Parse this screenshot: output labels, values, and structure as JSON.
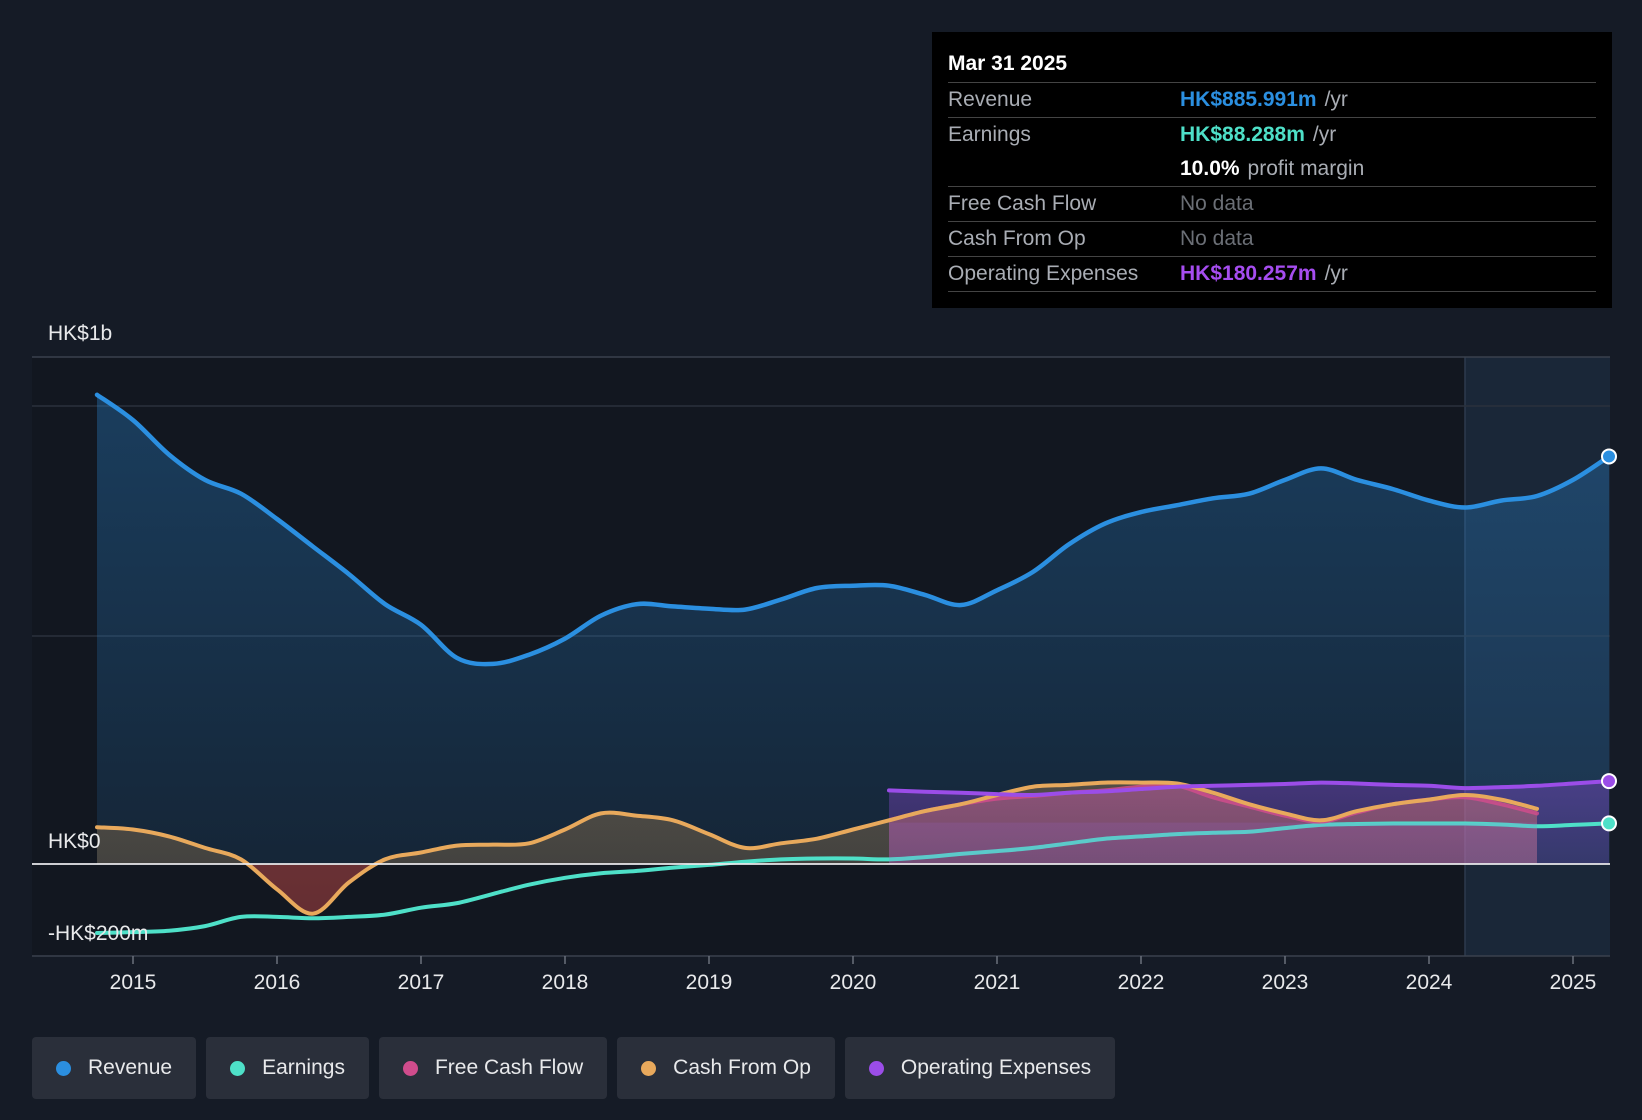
{
  "chart_data": {
    "type": "area",
    "title": "",
    "y_axis_labels": {
      "top": "HK$1b",
      "zero": "HK$0",
      "bottom": "-HK$200m"
    },
    "ylim": [
      -200,
      1100
    ],
    "x_ticks": [
      "2015",
      "2016",
      "2017",
      "2018",
      "2019",
      "2020",
      "2021",
      "2022",
      "2023",
      "2024",
      "2025"
    ],
    "highlight_from": 2024.25,
    "series": [
      {
        "name": "Revenue",
        "color": "#2b8fe0",
        "unit": "HK$m",
        "points": [
          [
            2014.75,
            1020
          ],
          [
            2015.0,
            965
          ],
          [
            2015.25,
            890
          ],
          [
            2015.5,
            835
          ],
          [
            2015.75,
            805
          ],
          [
            2016.0,
            750
          ],
          [
            2016.25,
            690
          ],
          [
            2016.5,
            630
          ],
          [
            2016.75,
            565
          ],
          [
            2017.0,
            520
          ],
          [
            2017.25,
            448
          ],
          [
            2017.5,
            435
          ],
          [
            2017.75,
            455
          ],
          [
            2018.0,
            490
          ],
          [
            2018.25,
            540
          ],
          [
            2018.5,
            565
          ],
          [
            2018.75,
            560
          ],
          [
            2019.0,
            555
          ],
          [
            2019.25,
            553
          ],
          [
            2019.5,
            575
          ],
          [
            2019.75,
            600
          ],
          [
            2020.0,
            605
          ],
          [
            2020.25,
            605
          ],
          [
            2020.5,
            585
          ],
          [
            2020.75,
            563
          ],
          [
            2021.0,
            595
          ],
          [
            2021.25,
            635
          ],
          [
            2021.5,
            695
          ],
          [
            2021.75,
            740
          ],
          [
            2022.0,
            765
          ],
          [
            2022.25,
            780
          ],
          [
            2022.5,
            795
          ],
          [
            2022.75,
            805
          ],
          [
            2023.0,
            835
          ],
          [
            2023.25,
            860
          ],
          [
            2023.5,
            835
          ],
          [
            2023.75,
            815
          ],
          [
            2024.0,
            790
          ],
          [
            2024.25,
            775
          ],
          [
            2024.5,
            790
          ],
          [
            2024.75,
            800
          ],
          [
            2025.0,
            835
          ],
          [
            2025.25,
            886
          ]
        ]
      },
      {
        "name": "Earnings",
        "color": "#4ee0c8",
        "unit": "HK$m",
        "points": [
          [
            2014.75,
            -150
          ],
          [
            2015.0,
            -148
          ],
          [
            2015.25,
            -145
          ],
          [
            2015.5,
            -135
          ],
          [
            2015.75,
            -115
          ],
          [
            2016.0,
            -115
          ],
          [
            2016.25,
            -118
          ],
          [
            2016.5,
            -115
          ],
          [
            2016.75,
            -110
          ],
          [
            2017.0,
            -95
          ],
          [
            2017.25,
            -85
          ],
          [
            2017.5,
            -65
          ],
          [
            2017.75,
            -45
          ],
          [
            2018.0,
            -30
          ],
          [
            2018.25,
            -20
          ],
          [
            2018.5,
            -15
          ],
          [
            2018.75,
            -8
          ],
          [
            2019.0,
            -2
          ],
          [
            2019.25,
            5
          ],
          [
            2019.5,
            10
          ],
          [
            2019.75,
            12
          ],
          [
            2020.0,
            12
          ],
          [
            2020.25,
            10
          ],
          [
            2020.5,
            15
          ],
          [
            2020.75,
            22
          ],
          [
            2021.0,
            28
          ],
          [
            2021.25,
            35
          ],
          [
            2021.5,
            45
          ],
          [
            2021.75,
            55
          ],
          [
            2022.0,
            60
          ],
          [
            2022.25,
            65
          ],
          [
            2022.5,
            68
          ],
          [
            2022.75,
            70
          ],
          [
            2023.0,
            78
          ],
          [
            2023.25,
            85
          ],
          [
            2023.5,
            87
          ],
          [
            2023.75,
            88
          ],
          [
            2024.0,
            88
          ],
          [
            2024.25,
            88
          ],
          [
            2024.5,
            86
          ],
          [
            2024.75,
            82
          ],
          [
            2025.0,
            85
          ],
          [
            2025.25,
            88.288
          ]
        ]
      },
      {
        "name": "Free Cash Flow",
        "color": "#d04c8c",
        "unit": "HK$m",
        "points": [
          [
            2020.25,
            95
          ],
          [
            2020.5,
            115
          ],
          [
            2020.75,
            130
          ],
          [
            2021.0,
            142
          ],
          [
            2021.25,
            148
          ],
          [
            2021.5,
            155
          ],
          [
            2021.75,
            160
          ],
          [
            2022.0,
            168
          ],
          [
            2022.25,
            170
          ],
          [
            2022.5,
            145
          ],
          [
            2022.75,
            125
          ],
          [
            2023.0,
            105
          ],
          [
            2023.25,
            92
          ],
          [
            2023.5,
            112
          ],
          [
            2023.75,
            130
          ],
          [
            2024.0,
            140
          ],
          [
            2024.25,
            145
          ],
          [
            2024.5,
            130
          ],
          [
            2024.75,
            110
          ]
        ]
      },
      {
        "name": "Cash From Op",
        "color": "#e8a95c",
        "unit": "HK$m",
        "points": [
          [
            2014.75,
            80
          ],
          [
            2015.0,
            75
          ],
          [
            2015.25,
            60
          ],
          [
            2015.5,
            35
          ],
          [
            2015.75,
            10
          ],
          [
            2016.0,
            -55
          ],
          [
            2016.25,
            -108
          ],
          [
            2016.5,
            -40
          ],
          [
            2016.75,
            10
          ],
          [
            2017.0,
            25
          ],
          [
            2017.25,
            40
          ],
          [
            2017.5,
            42
          ],
          [
            2017.75,
            45
          ],
          [
            2018.0,
            75
          ],
          [
            2018.25,
            110
          ],
          [
            2018.5,
            105
          ],
          [
            2018.75,
            95
          ],
          [
            2019.0,
            65
          ],
          [
            2019.25,
            35
          ],
          [
            2019.5,
            45
          ],
          [
            2019.75,
            55
          ],
          [
            2020.0,
            75
          ],
          [
            2020.25,
            95
          ],
          [
            2020.5,
            115
          ],
          [
            2020.75,
            130
          ],
          [
            2021.0,
            150
          ],
          [
            2021.25,
            168
          ],
          [
            2021.5,
            172
          ],
          [
            2021.75,
            177
          ],
          [
            2022.0,
            177
          ],
          [
            2022.25,
            175
          ],
          [
            2022.5,
            155
          ],
          [
            2022.75,
            130
          ],
          [
            2023.0,
            110
          ],
          [
            2023.25,
            95
          ],
          [
            2023.5,
            115
          ],
          [
            2023.75,
            130
          ],
          [
            2024.0,
            140
          ],
          [
            2024.25,
            150
          ],
          [
            2024.5,
            140
          ],
          [
            2024.75,
            120
          ]
        ]
      },
      {
        "name": "Operating Expenses",
        "color": "#9b4de8",
        "unit": "HK$m",
        "points": [
          [
            2020.25,
            160
          ],
          [
            2020.5,
            157
          ],
          [
            2020.75,
            155
          ],
          [
            2021.0,
            152
          ],
          [
            2021.25,
            150
          ],
          [
            2021.5,
            155
          ],
          [
            2021.75,
            158
          ],
          [
            2022.0,
            163
          ],
          [
            2022.25,
            168
          ],
          [
            2022.5,
            170
          ],
          [
            2022.75,
            172
          ],
          [
            2023.0,
            174
          ],
          [
            2023.25,
            177
          ],
          [
            2023.5,
            175
          ],
          [
            2023.75,
            172
          ],
          [
            2024.0,
            170
          ],
          [
            2024.25,
            165
          ],
          [
            2024.5,
            167
          ],
          [
            2024.75,
            170
          ],
          [
            2025.0,
            175
          ],
          [
            2025.25,
            180.257
          ]
        ]
      }
    ]
  },
  "tooltip": {
    "date": "Mar 31 2025",
    "rows": [
      {
        "label": "Revenue",
        "value": "HK$885.991m",
        "unit": "/yr",
        "color": "#2b8fe0"
      },
      {
        "label": "Earnings",
        "value": "HK$88.288m",
        "unit": "/yr",
        "color": "#4ee0c8"
      },
      {
        "label": "",
        "value": "10.0%",
        "unit": "profit margin",
        "color": "#ffffff"
      },
      {
        "label": "Free Cash Flow",
        "value": "No data",
        "unit": "",
        "color": "#6b6f76"
      },
      {
        "label": "Cash From Op",
        "value": "No data",
        "unit": "",
        "color": "#6b6f76"
      },
      {
        "label": "Operating Expenses",
        "value": "HK$180.257m",
        "unit": "/yr",
        "color": "#a64df0"
      }
    ]
  },
  "legend": [
    {
      "label": "Revenue",
      "color": "#2b8fe0"
    },
    {
      "label": "Earnings",
      "color": "#4ee0c8"
    },
    {
      "label": "Free Cash Flow",
      "color": "#d04c8c"
    },
    {
      "label": "Cash From Op",
      "color": "#e8a95c"
    },
    {
      "label": "Operating Expenses",
      "color": "#9b4de8"
    }
  ]
}
